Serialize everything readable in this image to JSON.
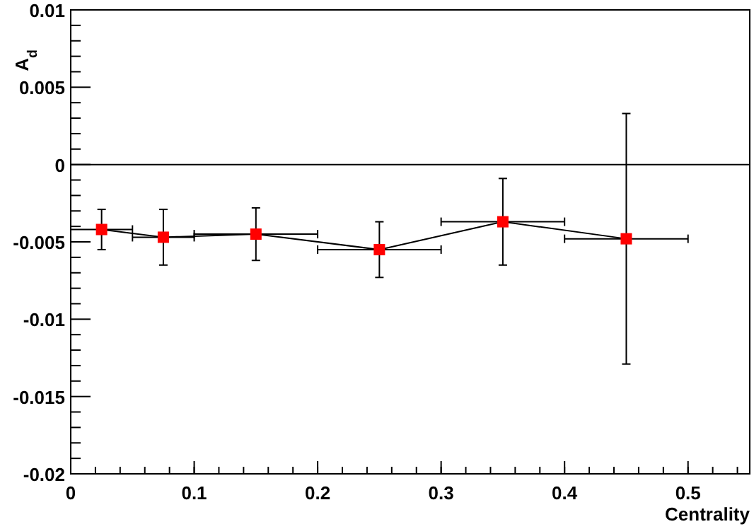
{
  "chart_data": {
    "type": "line",
    "xlabel": "Centrality",
    "ylabel": "A$_{d}$",
    "x": [
      0.025,
      0.075,
      0.15,
      0.25,
      0.35,
      0.45
    ],
    "series": [
      {
        "color": "#ff0000",
        "values": [
          -0.0042,
          -0.0047,
          -0.0045,
          -0.0055,
          -0.0037,
          -0.0048
        ],
        "errors": [
          0.0013,
          0.0018,
          0.0017,
          0.0018,
          0.0028,
          0.0081
        ],
        "xerrors": [
          0.025,
          0.025,
          0.05,
          0.05,
          0.05,
          0.05
        ]
      }
    ],
    "marker": "square",
    "line_style": "solid",
    "xlim": [
      0,
      0.55
    ],
    "xticks": [
      0,
      0.1,
      0.2,
      0.3,
      0.4,
      0.5
    ],
    "ylim": [
      -0.02,
      0.01
    ],
    "yticks": [
      -0.02,
      -0.015,
      -0.01,
      -0.005,
      0,
      0.005,
      0.01
    ],
    "ref_lines": [
      {
        "axis": "y",
        "value": 0,
        "color": "#000000"
      }
    ],
    "grid": false
  }
}
